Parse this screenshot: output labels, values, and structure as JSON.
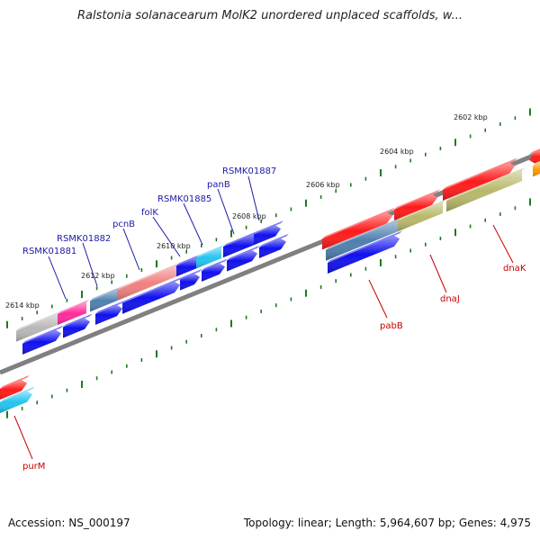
{
  "title": "Ralstonia solanacearum MolK2 unordered unplaced scaffolds, w...",
  "accession_label": "Accession: NS_000197",
  "summary_label": "Topology: linear; Length: 5,964,607 bp; Genes: 4,975",
  "ticks": [
    "2614 kbp",
    "2612 kbp",
    "2610 kbp",
    "2608 kbp",
    "2606 kbp",
    "2604 kbp",
    "2602 kbp"
  ],
  "genes": {
    "RSMK01881": "RSMK01881",
    "RSMK01882": "RSMK01882",
    "pcnB": "pcnB",
    "folK": "folK",
    "RSMK01885": "RSMK01885",
    "panB": "panB",
    "RSMK01887": "RSMK01887",
    "pabB": "pabB",
    "dnaJ": "dnaJ",
    "dnaK": "dnaK",
    "purM": "purM"
  },
  "colors": {
    "axis": "#808080",
    "tick": "#1f7a1f",
    "label_blue": "#1a1aa8",
    "label_red": "#c80000",
    "red": "#ff1a1a",
    "blue": "#1010ee",
    "cyan": "#22c4f0",
    "pink": "#ff2a9a",
    "salmon": "#f08080",
    "steel": "#4f7fae",
    "gray": "#b8b8b8",
    "olive": "#b8b86a",
    "orange": "#ff9900"
  }
}
